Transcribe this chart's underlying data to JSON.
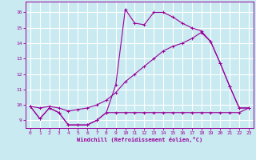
{
  "bg_color": "#c8eaf0",
  "grid_color": "#ffffff",
  "line_color": "#990099",
  "xlabel": "Windchill (Refroidissement éolien,°C)",
  "tick_color": "#990099",
  "xlim": [
    -0.5,
    23.5
  ],
  "ylim": [
    8.5,
    16.7
  ],
  "yticks": [
    9,
    10,
    11,
    12,
    13,
    14,
    15,
    16
  ],
  "xticks": [
    0,
    1,
    2,
    3,
    4,
    5,
    6,
    7,
    8,
    9,
    10,
    11,
    12,
    13,
    14,
    15,
    16,
    17,
    18,
    19,
    20,
    21,
    22,
    23
  ],
  "series1_x": [
    0,
    1,
    2,
    3,
    4,
    5,
    6,
    7,
    8,
    9,
    10,
    11,
    12,
    13,
    14,
    15,
    16,
    17,
    18,
    19,
    20,
    21,
    22,
    23
  ],
  "series1_y": [
    9.9,
    9.1,
    9.8,
    9.5,
    8.7,
    8.7,
    8.7,
    9.0,
    9.5,
    9.5,
    9.5,
    9.5,
    9.5,
    9.5,
    9.5,
    9.5,
    9.5,
    9.5,
    9.5,
    9.5,
    9.5,
    9.5,
    9.5,
    9.8
  ],
  "series2_x": [
    0,
    1,
    2,
    3,
    4,
    5,
    6,
    7,
    8,
    9,
    10,
    11,
    12,
    13,
    14,
    15,
    16,
    17,
    18,
    19,
    20,
    21,
    22,
    23
  ],
  "series2_y": [
    9.9,
    9.1,
    9.8,
    9.5,
    8.7,
    8.7,
    8.7,
    9.0,
    9.5,
    11.3,
    16.2,
    15.3,
    15.2,
    16.0,
    16.0,
    15.7,
    15.3,
    15.0,
    14.8,
    14.1,
    12.7,
    11.2,
    9.8,
    9.8
  ],
  "series3_x": [
    0,
    1,
    2,
    3,
    4,
    5,
    6,
    7,
    8,
    9,
    10,
    11,
    12,
    13,
    14,
    15,
    16,
    17,
    18,
    19,
    20,
    21,
    22,
    23
  ],
  "series3_y": [
    9.9,
    9.8,
    9.9,
    9.8,
    9.6,
    9.7,
    9.8,
    10.0,
    10.3,
    10.8,
    11.5,
    12.0,
    12.5,
    13.0,
    13.5,
    13.8,
    14.0,
    14.3,
    14.7,
    14.1,
    12.7,
    11.2,
    9.8,
    9.8
  ]
}
